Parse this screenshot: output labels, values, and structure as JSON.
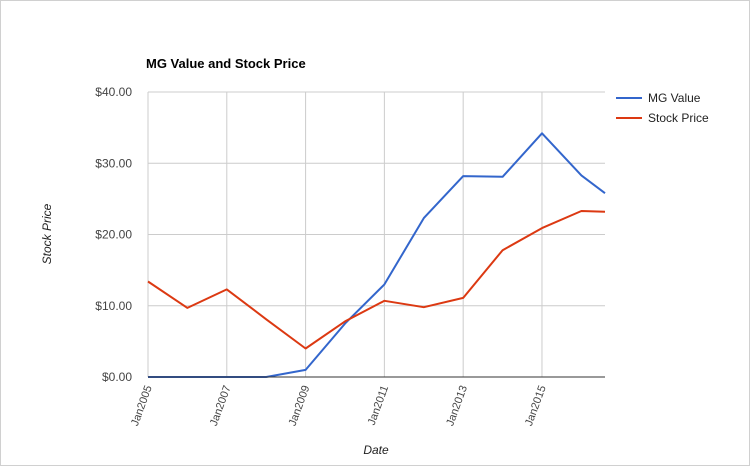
{
  "chart_data": {
    "type": "line",
    "title": "MG Value and Stock Price",
    "xlabel": "Date",
    "ylabel": "Stock Price",
    "ylim": [
      0,
      40
    ],
    "yticks": [
      0,
      10,
      20,
      30,
      40
    ],
    "ytick_labels": [
      "$0.00",
      "$10.00",
      "$20.00",
      "$30.00",
      "$40.00"
    ],
    "xlim": [
      2005,
      2016.6
    ],
    "xticks": [
      2005,
      2007,
      2009,
      2011,
      2013,
      2015
    ],
    "xtick_labels": [
      "Jan2005",
      "Jan2007",
      "Jan2009",
      "Jan2011",
      "Jan2013",
      "Jan2015"
    ],
    "grid": true,
    "legend_position": "right",
    "series": [
      {
        "name": "MG Value",
        "color": "#3366cc",
        "x": [
          2005,
          2006,
          2007,
          2008,
          2009,
          2010,
          2011,
          2012,
          2013,
          2014,
          2015,
          2016,
          2016.6
        ],
        "values": [
          0,
          0,
          0,
          0,
          1.0,
          7.5,
          13.0,
          22.3,
          28.2,
          28.1,
          34.2,
          28.3,
          25.8
        ]
      },
      {
        "name": "Stock Price",
        "color": "#dc3912",
        "x": [
          2005,
          2006,
          2007,
          2008,
          2009,
          2010,
          2011,
          2012,
          2013,
          2014,
          2015,
          2016,
          2016.6
        ],
        "values": [
          13.4,
          9.7,
          12.3,
          8.1,
          4.0,
          7.8,
          10.7,
          9.8,
          11.1,
          17.8,
          20.9,
          23.3,
          23.2
        ]
      }
    ]
  }
}
